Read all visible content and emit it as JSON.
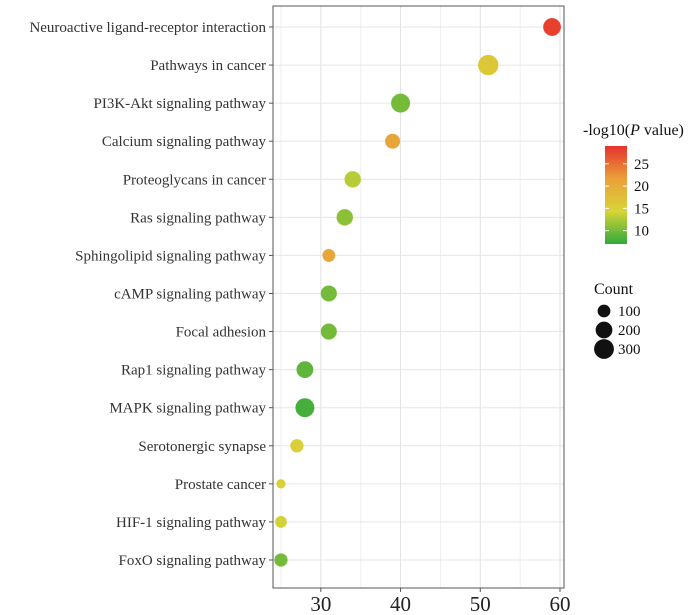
{
  "chart_data": {
    "type": "scatter",
    "title": "",
    "xlabel": "",
    "ylabel": "",
    "xlim": [
      24,
      60.5
    ],
    "xticks": [
      30,
      40,
      50,
      60
    ],
    "categories": [
      "Neuroactive ligand-receptor interaction",
      "Pathways in cancer",
      "PI3K-Akt signaling pathway",
      "Calcium signaling pathway",
      "Proteoglycans in cancer",
      "Ras signaling pathway",
      "Sphingolipid signaling pathway",
      "cAMP signaling pathway",
      "Focal adhesion",
      "Rap1 signaling pathway",
      "MAPK signaling pathway",
      "Serotonergic synapse",
      "Prostate cancer",
      "HIF-1 signaling pathway",
      "FoxO signaling pathway"
    ],
    "x": [
      59,
      51,
      40,
      39,
      34,
      33,
      31,
      31,
      31,
      28,
      28,
      27,
      25,
      25,
      25
    ],
    "count": [
      230,
      320,
      270,
      150,
      190,
      190,
      100,
      180,
      180,
      200,
      270,
      110,
      40,
      80,
      110
    ],
    "neglog10p": [
      28,
      16,
      10,
      21,
      13,
      11,
      21,
      10,
      10,
      9,
      8,
      15,
      15,
      14,
      10
    ],
    "color_legend": {
      "title_prefix": "-log10(",
      "title_italic": "P",
      "title_suffix": " value)",
      "ticks": [
        25,
        20,
        15,
        10
      ],
      "range": [
        7,
        29
      ],
      "colors": [
        "#e8312c",
        "#eaa03a",
        "#d8d436",
        "#2fa93d"
      ]
    },
    "size_legend": {
      "title": "Count",
      "values": [
        100,
        200,
        300
      ]
    },
    "grid": true,
    "legend_position": "right"
  }
}
